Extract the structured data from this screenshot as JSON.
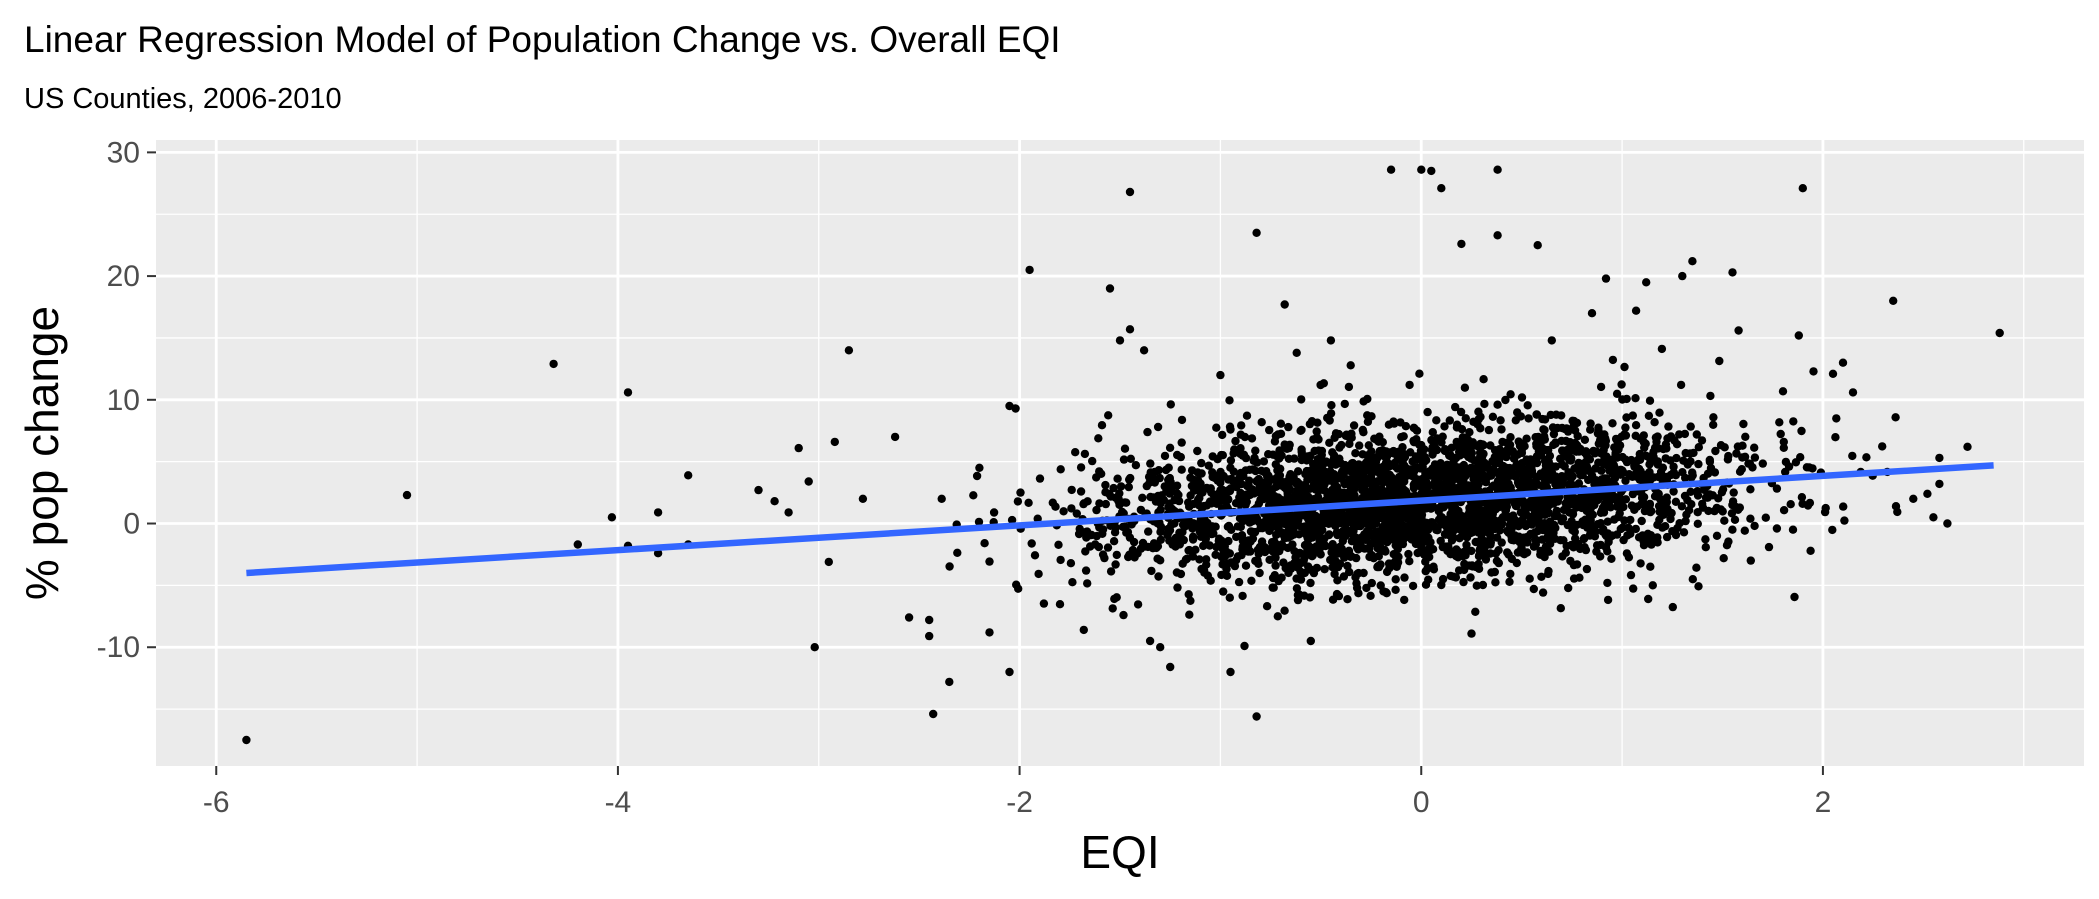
{
  "chart_data": {
    "type": "scatter",
    "title": "Linear Regression Model of Population Change vs. Overall EQI",
    "subtitle": "US Counties, 2006-2010",
    "xlabel": "EQI",
    "ylabel": "% pop change",
    "xlim": [
      -6.3,
      3.3
    ],
    "ylim": [
      -19.6,
      31.0
    ],
    "x_ticks": [
      -6,
      -4,
      -2,
      0,
      2
    ],
    "y_ticks": [
      -10,
      0,
      10,
      20,
      30
    ],
    "x_tick_labels": [
      "-6",
      "-4",
      "-2",
      "0",
      "2"
    ],
    "y_tick_labels": [
      "-10",
      "0",
      "10",
      "20",
      "30"
    ],
    "grid": true,
    "legend": "none",
    "colors": {
      "panel_background": "#ebebeb",
      "grid_major": "#ffffff",
      "point": "#000000",
      "fit_line": "#3366ff",
      "axis_text": "#4d4d4d"
    },
    "regression_line": {
      "x": [
        -5.85,
        2.85
      ],
      "y": [
        -4.0,
        4.7
      ]
    },
    "outlier_points": [
      {
        "x": -5.85,
        "y": -17.5
      },
      {
        "x": -5.05,
        "y": 2.3
      },
      {
        "x": -4.32,
        "y": 12.9
      },
      {
        "x": -4.2,
        "y": -1.7
      },
      {
        "x": -4.03,
        "y": 0.5
      },
      {
        "x": -3.95,
        "y": 10.6
      },
      {
        "x": -3.95,
        "y": -1.8
      },
      {
        "x": -3.8,
        "y": 0.9
      },
      {
        "x": -3.8,
        "y": -2.4
      },
      {
        "x": -3.65,
        "y": 3.9
      },
      {
        "x": -3.65,
        "y": -1.7
      },
      {
        "x": -3.3,
        "y": 2.7
      },
      {
        "x": -3.22,
        "y": 1.8
      },
      {
        "x": -3.15,
        "y": 0.9
      },
      {
        "x": -3.1,
        "y": 6.1
      },
      {
        "x": -3.05,
        "y": 3.4
      },
      {
        "x": -3.02,
        "y": -10.0
      },
      {
        "x": -2.95,
        "y": -3.1
      },
      {
        "x": -2.92,
        "y": 6.6
      },
      {
        "x": -2.85,
        "y": 14.0
      },
      {
        "x": -2.78,
        "y": 2.0
      },
      {
        "x": -2.62,
        "y": 7.0
      },
      {
        "x": -2.55,
        "y": -7.6
      },
      {
        "x": -2.45,
        "y": -7.8
      },
      {
        "x": -2.45,
        "y": -9.1
      },
      {
        "x": -2.43,
        "y": -15.4
      },
      {
        "x": -2.35,
        "y": -12.8
      },
      {
        "x": -2.2,
        "y": 4.5
      },
      {
        "x": -2.15,
        "y": -8.8
      },
      {
        "x": -2.05,
        "y": -12.0
      },
      {
        "x": -2.05,
        "y": 9.5
      },
      {
        "x": -2.02,
        "y": 9.3
      },
      {
        "x": -1.95,
        "y": 20.5
      },
      {
        "x": -1.68,
        "y": -8.6
      },
      {
        "x": -1.55,
        "y": 19.0
      },
      {
        "x": -1.5,
        "y": 14.8
      },
      {
        "x": -1.45,
        "y": 26.8
      },
      {
        "x": -1.45,
        "y": 15.7
      },
      {
        "x": -1.38,
        "y": 14.0
      },
      {
        "x": -1.35,
        "y": -9.5
      },
      {
        "x": -1.3,
        "y": -10.0
      },
      {
        "x": -1.25,
        "y": -11.6
      },
      {
        "x": -1.0,
        "y": 12.0
      },
      {
        "x": -0.95,
        "y": -12.0
      },
      {
        "x": -0.88,
        "y": -9.9
      },
      {
        "x": -0.82,
        "y": 23.5
      },
      {
        "x": -0.82,
        "y": -15.6
      },
      {
        "x": -0.68,
        "y": 17.7
      },
      {
        "x": -0.62,
        "y": 13.8
      },
      {
        "x": -0.55,
        "y": -9.5
      },
      {
        "x": -0.45,
        "y": 14.8
      },
      {
        "x": -0.15,
        "y": 28.6
      },
      {
        "x": 0.0,
        "y": 28.6
      },
      {
        "x": 0.05,
        "y": 28.5
      },
      {
        "x": 0.1,
        "y": 27.1
      },
      {
        "x": 0.2,
        "y": 22.6
      },
      {
        "x": 0.25,
        "y": -8.9
      },
      {
        "x": 0.38,
        "y": 28.6
      },
      {
        "x": 0.38,
        "y": 23.3
      },
      {
        "x": 0.58,
        "y": 22.5
      },
      {
        "x": 0.65,
        "y": 14.8
      },
      {
        "x": 0.85,
        "y": 17.0
      },
      {
        "x": 0.92,
        "y": 19.8
      },
      {
        "x": 1.07,
        "y": 17.2
      },
      {
        "x": 1.12,
        "y": 19.5
      },
      {
        "x": 1.13,
        "y": -6.1
      },
      {
        "x": 1.3,
        "y": 20.0
      },
      {
        "x": 1.35,
        "y": 21.2
      },
      {
        "x": 1.55,
        "y": 20.3
      },
      {
        "x": 1.58,
        "y": 15.6
      },
      {
        "x": 1.88,
        "y": 15.2
      },
      {
        "x": 1.9,
        "y": 27.1
      },
      {
        "x": 2.05,
        "y": 12.1
      },
      {
        "x": 2.1,
        "y": 13.0
      },
      {
        "x": 2.15,
        "y": 10.6
      },
      {
        "x": 2.35,
        "y": 18.0
      },
      {
        "x": 2.45,
        "y": 2.0
      },
      {
        "x": 2.55,
        "y": 0.5
      },
      {
        "x": 2.58,
        "y": 5.3
      },
      {
        "x": 2.72,
        "y": 6.2
      },
      {
        "x": 2.52,
        "y": 2.4
      },
      {
        "x": 2.58,
        "y": 3.2
      },
      {
        "x": 2.62,
        "y": 0.0
      },
      {
        "x": 2.88,
        "y": 15.4
      }
    ],
    "cloud": {
      "n": 3200,
      "x_mean": 0.0,
      "x_sd": 0.82,
      "residual_sd": 3.1,
      "y_range": [
        -7.5,
        14.5
      ],
      "x_range": [
        -2.4,
        2.4
      ]
    }
  }
}
